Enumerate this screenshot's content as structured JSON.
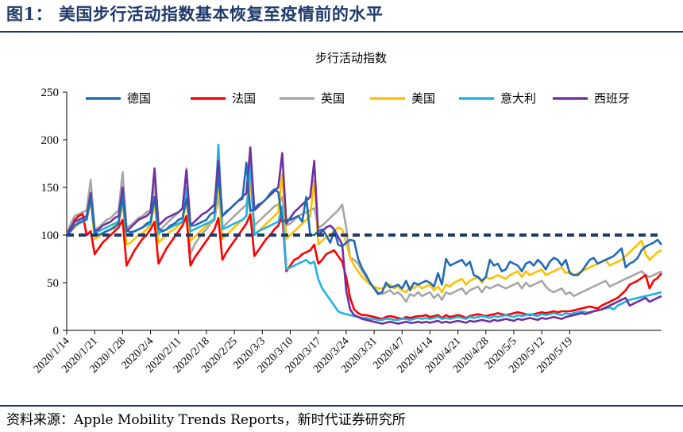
{
  "header": {
    "title": "图1：  美国步行活动指数基本恢复至疫情前的水平"
  },
  "footer": {
    "source": "资料来源：Apple Mobility Trends Reports，新时代证券研究所"
  },
  "chart_data": {
    "type": "line",
    "title": "步行活动指数",
    "xlabel": "",
    "ylabel": "",
    "ylim": [
      0,
      250
    ],
    "yticks": [
      0,
      50,
      100,
      150,
      200,
      250
    ],
    "grid": false,
    "legend_position": "top",
    "x_start": "2020/1/14",
    "x_end": "2020/5/19",
    "x_tick_labels": [
      "2020/1/14",
      "2020/1/21",
      "2020/1/28",
      "2020/2/4",
      "2020/2/11",
      "2020/2/18",
      "2020/2/25",
      "2020/3/3",
      "2020/3/10",
      "2020/3/17",
      "2020/3/24",
      "2020/3/31",
      "2020/4/7",
      "2020/4/14",
      "2020/4/21",
      "2020/4/28",
      "2020/5/5",
      "2020/5/12",
      "2020/5/19"
    ],
    "reference_line": {
      "value": 100,
      "style": "dashed",
      "color": "#1f3a6b"
    },
    "series": [
      {
        "name": "德国",
        "color": "#1f6cb5",
        "values": [
          100,
          104,
          110,
          113,
          115,
          117,
          140,
          103,
          100,
          102,
          104,
          106,
          108,
          112,
          142,
          105,
          103,
          104,
          106,
          108,
          112,
          114,
          140,
          107,
          104,
          106,
          110,
          112,
          116,
          118,
          138,
          110,
          110,
          112,
          114,
          116,
          122,
          124,
          162,
          120,
          125,
          128,
          132,
          136,
          138,
          176,
          125,
          128,
          132,
          134,
          138,
          144,
          148,
          145,
          114,
          116,
          116,
          118,
          120,
          114,
          140,
          100,
          100,
          104,
          106,
          100,
          92,
          105,
          90,
          88,
          92,
          95,
          94,
          75,
          65,
          58,
          50,
          44,
          38,
          40,
          50,
          45,
          46,
          48,
          44,
          52,
          42,
          50,
          48,
          50,
          52,
          50,
          46,
          60,
          48,
          75,
          68,
          70,
          72,
          74,
          68,
          72,
          58,
          56,
          52,
          56,
          74,
          68,
          70,
          62,
          64,
          72,
          70,
          68,
          62,
          70,
          72,
          68,
          74,
          70,
          64,
          72,
          76,
          74,
          68,
          74,
          60,
          58,
          58,
          62,
          68,
          74,
          76,
          70,
          72,
          74,
          76,
          78,
          82,
          86,
          66,
          70,
          72,
          76,
          84,
          88,
          90,
          92,
          95,
          90
        ]
      },
      {
        "name": "法国",
        "color": "#ff0000",
        "values": [
          100,
          106,
          116,
          120,
          122,
          100,
          104,
          80,
          86,
          92,
          96,
          100,
          104,
          108,
          116,
          68,
          76,
          84,
          90,
          96,
          100,
          106,
          114,
          70,
          78,
          86,
          92,
          98,
          104,
          110,
          120,
          68,
          76,
          82,
          88,
          94,
          100,
          106,
          118,
          74,
          82,
          88,
          94,
          100,
          106,
          112,
          122,
          78,
          84,
          90,
          96,
          100,
          106,
          110,
          120,
          62,
          68,
          74,
          76,
          80,
          82,
          84,
          90,
          70,
          74,
          80,
          82,
          84,
          78,
          72,
          56,
          34,
          22,
          18,
          16,
          16,
          15,
          14,
          13,
          12,
          14,
          15,
          14,
          13,
          12,
          14,
          13,
          14,
          15,
          15,
          16,
          14,
          15,
          16,
          13,
          16,
          14,
          15,
          16,
          15,
          13,
          15,
          16,
          17,
          16,
          15,
          16,
          17,
          18,
          17,
          16,
          17,
          18,
          19,
          18,
          17,
          16,
          17,
          18,
          19,
          18,
          19,
          20,
          19,
          20,
          20,
          20,
          21,
          22,
          23,
          24,
          25,
          24,
          23,
          26,
          28,
          30,
          32,
          34,
          38,
          42,
          48,
          50,
          52,
          55,
          58,
          44,
          52,
          55,
          60
        ]
      },
      {
        "name": "英国",
        "color": "#a6a6a6",
        "values": [
          100,
          112,
          120,
          122,
          124,
          126,
          158,
          106,
          108,
          112,
          116,
          118,
          122,
          126,
          166,
          108,
          110,
          114,
          118,
          120,
          124,
          126,
          154,
          100,
          108,
          112,
          116,
          120,
          124,
          128,
          170,
          80,
          90,
          96,
          102,
          106,
          112,
          116,
          140,
          108,
          112,
          116,
          120,
          124,
          128,
          132,
          160,
          110,
          114,
          118,
          122,
          126,
          130,
          132,
          140,
          110,
          112,
          116,
          120,
          122,
          124,
          126,
          128,
          108,
          110,
          114,
          118,
          122,
          126,
          132,
          108,
          76,
          74,
          70,
          62,
          56,
          50,
          44,
          40,
          38,
          40,
          42,
          38,
          40,
          36,
          30,
          38,
          36,
          40,
          36,
          38,
          40,
          34,
          38,
          32,
          40,
          38,
          40,
          42,
          44,
          38,
          42,
          44,
          46,
          40,
          46,
          44,
          46,
          48,
          46,
          44,
          46,
          48,
          50,
          44,
          50,
          46,
          48,
          50,
          52,
          46,
          42,
          40,
          42,
          44,
          38,
          40,
          36,
          38,
          40,
          42,
          44,
          46,
          48,
          50,
          52,
          46,
          48,
          50,
          52,
          54,
          56,
          58,
          60,
          62,
          58,
          56,
          58,
          60,
          62
        ]
      },
      {
        "name": "美国",
        "color": "#ffc000",
        "values": [
          100,
          104,
          108,
          112,
          114,
          116,
          136,
          96,
          98,
          102,
          104,
          106,
          110,
          112,
          134,
          90,
          92,
          96,
          100,
          102,
          106,
          110,
          134,
          92,
          96,
          100,
          104,
          106,
          110,
          114,
          136,
          94,
          98,
          102,
          106,
          110,
          114,
          118,
          156,
          96,
          100,
          104,
          108,
          112,
          116,
          120,
          160,
          100,
          104,
          108,
          112,
          116,
          120,
          124,
          164,
          96,
          100,
          104,
          108,
          112,
          116,
          120,
          158,
          90,
          94,
          98,
          100,
          104,
          108,
          106,
          92,
          76,
          68,
          62,
          56,
          52,
          48,
          46,
          44,
          44,
          46,
          48,
          44,
          46,
          42,
          40,
          46,
          44,
          48,
          44,
          46,
          48,
          42,
          46,
          40,
          48,
          46,
          50,
          52,
          54,
          48,
          52,
          54,
          56,
          50,
          56,
          54,
          56,
          58,
          56,
          54,
          58,
          60,
          62,
          56,
          62,
          58,
          60,
          62,
          64,
          58,
          60,
          62,
          64,
          66,
          60,
          62,
          58,
          60,
          62,
          64,
          66,
          68,
          70,
          72,
          74,
          68,
          70,
          72,
          74,
          78,
          82,
          86,
          90,
          94,
          80,
          74,
          78,
          82,
          84
        ]
      },
      {
        "name": "意大利",
        "color": "#1eb4e6",
        "values": [
          100,
          106,
          110,
          112,
          114,
          116,
          140,
          102,
          104,
          106,
          108,
          110,
          112,
          114,
          138,
          100,
          102,
          104,
          106,
          108,
          110,
          112,
          140,
          102,
          104,
          106,
          108,
          110,
          112,
          114,
          150,
          104,
          106,
          108,
          110,
          112,
          114,
          116,
          195,
          106,
          108,
          110,
          112,
          114,
          116,
          120,
          176,
          100,
          104,
          106,
          108,
          110,
          112,
          114,
          130,
          64,
          66,
          68,
          70,
          72,
          74,
          70,
          72,
          54,
          44,
          38,
          32,
          26,
          20,
          18,
          17,
          16,
          15,
          14,
          13,
          13,
          12,
          12,
          11,
          11,
          12,
          12,
          11,
          11,
          12,
          12,
          11,
          12,
          13,
          12,
          13,
          12,
          13,
          14,
          12,
          13,
          12,
          13,
          14,
          13,
          12,
          14,
          13,
          14,
          15,
          14,
          13,
          15,
          14,
          15,
          16,
          15,
          14,
          16,
          15,
          16,
          17,
          16,
          15,
          17,
          16,
          17,
          18,
          17,
          16,
          18,
          17,
          18,
          19,
          20,
          19,
          18,
          20,
          21,
          22,
          23,
          24,
          22,
          26,
          28,
          30,
          32,
          33,
          34,
          35,
          36,
          37,
          38,
          39,
          40
        ]
      },
      {
        "name": "西班牙",
        "color": "#7030a0",
        "values": [
          100,
          108,
          114,
          116,
          118,
          120,
          144,
          104,
          106,
          110,
          112,
          114,
          118,
          120,
          150,
          104,
          108,
          112,
          116,
          118,
          120,
          124,
          170,
          110,
          114,
          118,
          120,
          122,
          124,
          128,
          168,
          110,
          114,
          118,
          122,
          124,
          128,
          132,
          178,
          120,
          124,
          128,
          132,
          136,
          140,
          144,
          192,
          126,
          130,
          134,
          138,
          142,
          146,
          150,
          186,
          112,
          118,
          124,
          128,
          132,
          136,
          140,
          178,
          100,
          104,
          108,
          110,
          106,
          98,
          90,
          42,
          22,
          16,
          14,
          12,
          11,
          10,
          9,
          8,
          7,
          8,
          9,
          8,
          7,
          8,
          9,
          8,
          8,
          9,
          8,
          9,
          8,
          9,
          10,
          8,
          9,
          8,
          9,
          10,
          9,
          8,
          10,
          9,
          10,
          11,
          10,
          9,
          11,
          10,
          11,
          12,
          11,
          10,
          12,
          11,
          12,
          13,
          12,
          11,
          13,
          12,
          13,
          14,
          13,
          12,
          14,
          15,
          16,
          17,
          18,
          17,
          19,
          20,
          21,
          22,
          24,
          26,
          28,
          30,
          32,
          34,
          26,
          28,
          30,
          32,
          34,
          30,
          32,
          34,
          36
        ]
      }
    ]
  }
}
